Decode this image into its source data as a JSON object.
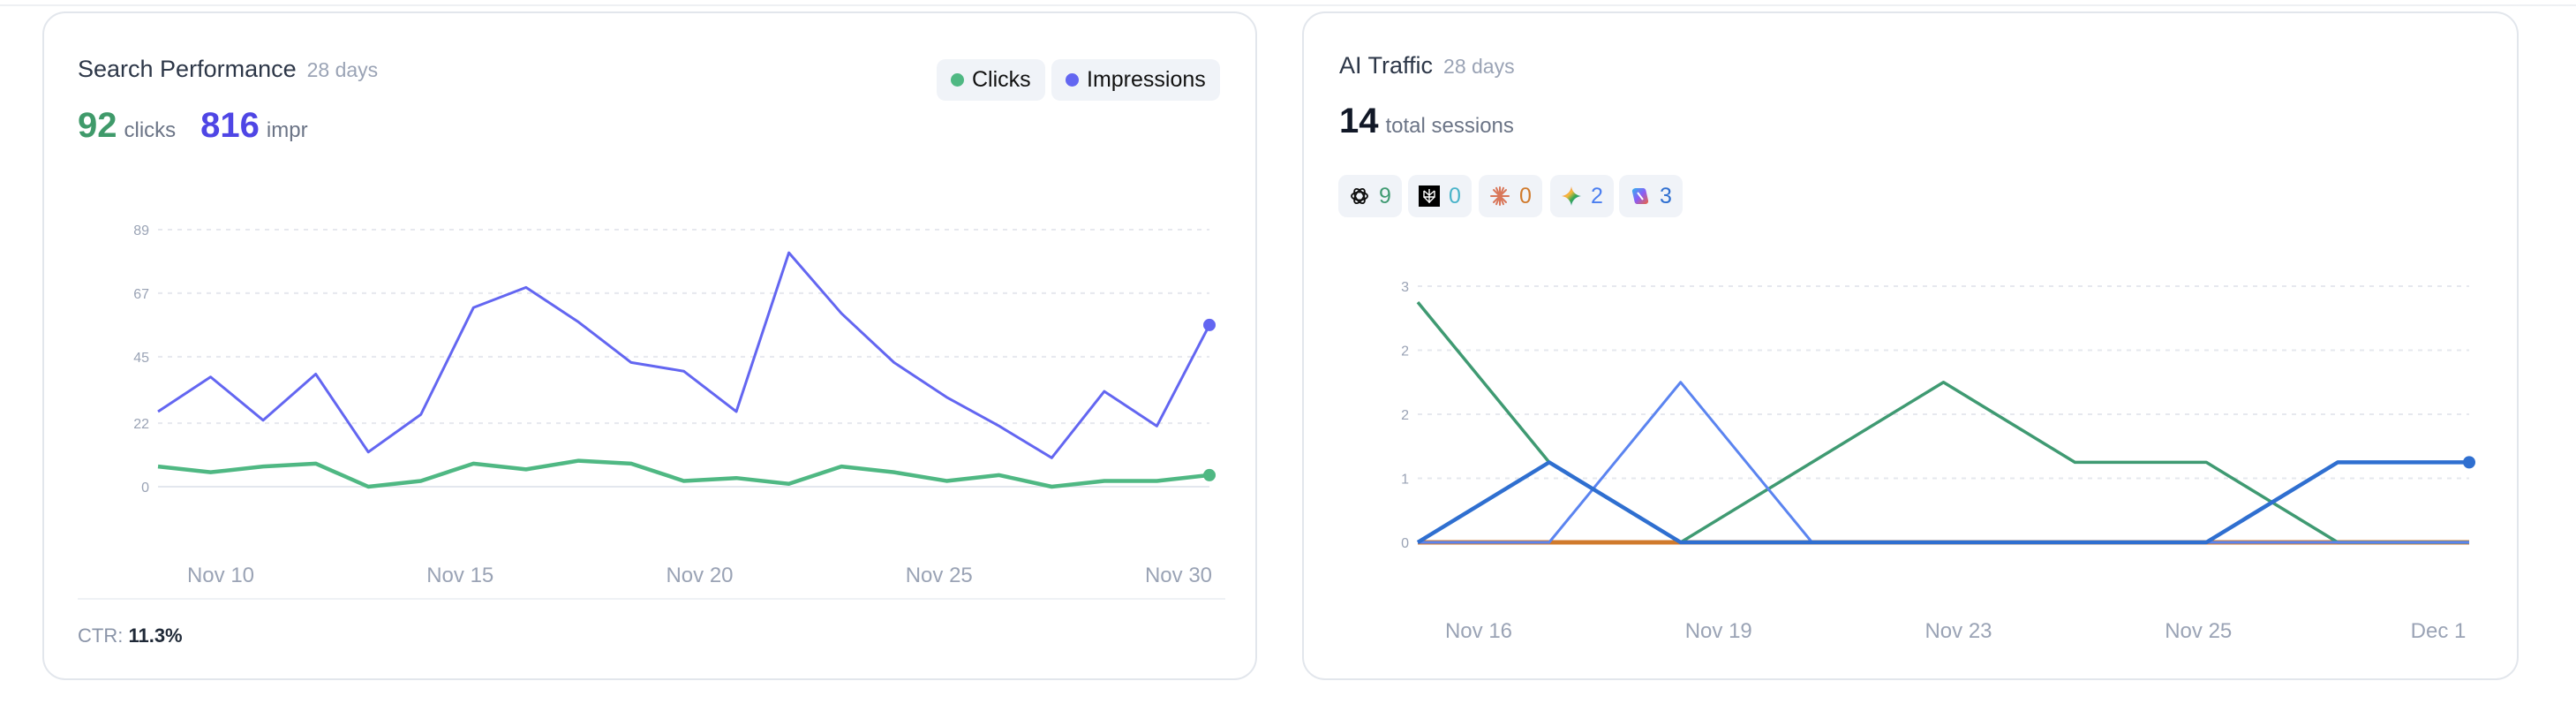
{
  "search_performance": {
    "title": "Search Performance",
    "period": "28 days",
    "legend": [
      {
        "label": "Clicks",
        "color": "#4fb883"
      },
      {
        "label": "Impressions",
        "color": "#6366f1"
      }
    ],
    "clicks_total": "92",
    "clicks_unit": "clicks",
    "impressions_total": "816",
    "impressions_unit": "impr",
    "ctr_label": "CTR:",
    "ctr_value": "11.3%",
    "chart_data": {
      "type": "line",
      "x_tick_labels": [
        "Nov 10",
        "Nov 15",
        "Nov 20",
        "Nov 25",
        "Nov 30"
      ],
      "y_tick_labels": [
        "89",
        "67",
        "45",
        "22",
        "0"
      ],
      "y_ticks": [
        89,
        67,
        45,
        22,
        0
      ],
      "ylim": [
        0,
        89
      ],
      "grid": true,
      "series": [
        {
          "name": "Impressions",
          "color": "#6366f1",
          "values": [
            26,
            38,
            23,
            39,
            12,
            25,
            62,
            69,
            57,
            43,
            40,
            26,
            81,
            60,
            43,
            31,
            21,
            10,
            33,
            21,
            56
          ]
        },
        {
          "name": "Clicks",
          "color": "#4fb883",
          "values": [
            7,
            5,
            7,
            8,
            0,
            2,
            8,
            6,
            9,
            8,
            2,
            3,
            1,
            7,
            5,
            2,
            4,
            0,
            2,
            2,
            4
          ]
        }
      ]
    }
  },
  "ai_traffic": {
    "title": "AI Traffic",
    "period": "28 days",
    "total": "14",
    "total_unit": "total sessions",
    "sources": [
      {
        "icon": "chatgpt-icon",
        "count": "9",
        "color": "#3f9a72"
      },
      {
        "icon": "perplexity-icon",
        "count": "0",
        "color": "#49b3c9"
      },
      {
        "icon": "claude-icon",
        "count": "0",
        "color": "#d07a2c"
      },
      {
        "icon": "gemini-icon",
        "count": "2",
        "color": "#4a7ef0"
      },
      {
        "icon": "copilot-icon",
        "count": "3",
        "color": "#2f6fd0"
      }
    ],
    "chart_data": {
      "type": "line",
      "x_tick_labels": [
        "Nov 16",
        "Nov 19",
        "Nov 23",
        "Nov 25",
        "Dec 1"
      ],
      "y_tick_labels": [
        "3",
        "2",
        "2",
        "1",
        "0"
      ],
      "y_ticks": [
        3.2,
        2.4,
        1.6,
        0.8,
        0
      ],
      "ylim": [
        0,
        3.2
      ],
      "grid": true,
      "series": [
        {
          "source": "perplexity",
          "color": "#49b3c9",
          "values": [
            0,
            0,
            0,
            0,
            0,
            0,
            0,
            0,
            0
          ]
        },
        {
          "source": "claude",
          "color": "#d07a2c",
          "values": [
            0,
            0,
            0,
            0,
            0,
            0,
            0,
            0,
            0
          ]
        },
        {
          "source": "chatgpt",
          "color": "#3f9a72",
          "values": [
            3,
            1,
            0,
            1,
            2,
            1,
            1,
            0,
            0
          ]
        },
        {
          "source": "gemini",
          "color": "#5b84f0",
          "values": [
            0,
            0,
            2,
            0,
            0,
            0,
            0,
            0,
            0
          ]
        },
        {
          "source": "copilot",
          "color": "#2f6fd0",
          "values": [
            0,
            1,
            0,
            0,
            0,
            0,
            0,
            1,
            1
          ]
        }
      ]
    }
  }
}
